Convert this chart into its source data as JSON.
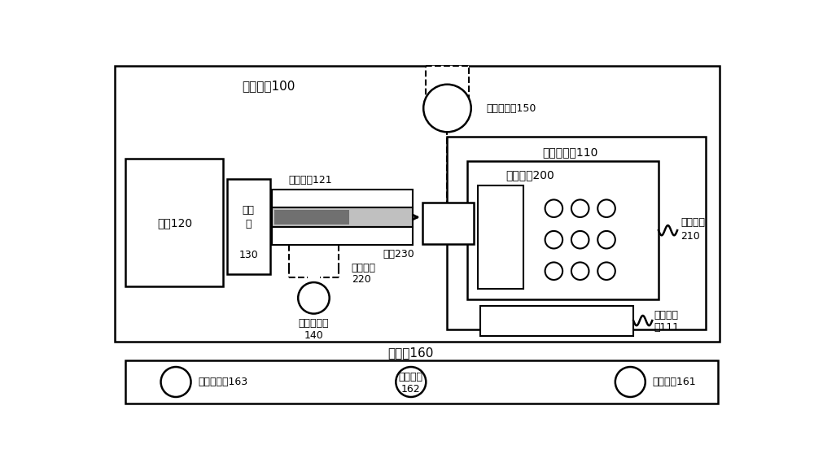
{
  "bg_color": "#ffffff",
  "line_color": "#000000",
  "title_system": "检测系统100",
  "title_control": "控制板160",
  "label_motor": "电机120",
  "label_damper_1": "阻尼",
  "label_damper_2": "器",
  "label_damper_3": "130",
  "label_handle_detect": "检测把手121",
  "label_lock_platform": "锁具放置台110",
  "label_smart_lock": "智能锁芯200",
  "label_vision": "视觉采集器150",
  "label_lock_core": "锁芯230",
  "label_handle1_1": "第一把手",
  "label_handle1_2": "210",
  "label_handle2_1": "第二把手",
  "label_handle2_2": "220",
  "label_sensor_1": "转动感应器",
  "label_sensor_2": "140",
  "label_bluetooth_1": "蓝牙感应",
  "label_bluetooth_2": "板111",
  "label_indicator": "状态指示器163",
  "label_pause_1": "暂停按钮",
  "label_pause_2": "162",
  "label_start": "启动按钮161",
  "font_size_small": 9,
  "font_size_label": 10,
  "font_size_title": 11
}
